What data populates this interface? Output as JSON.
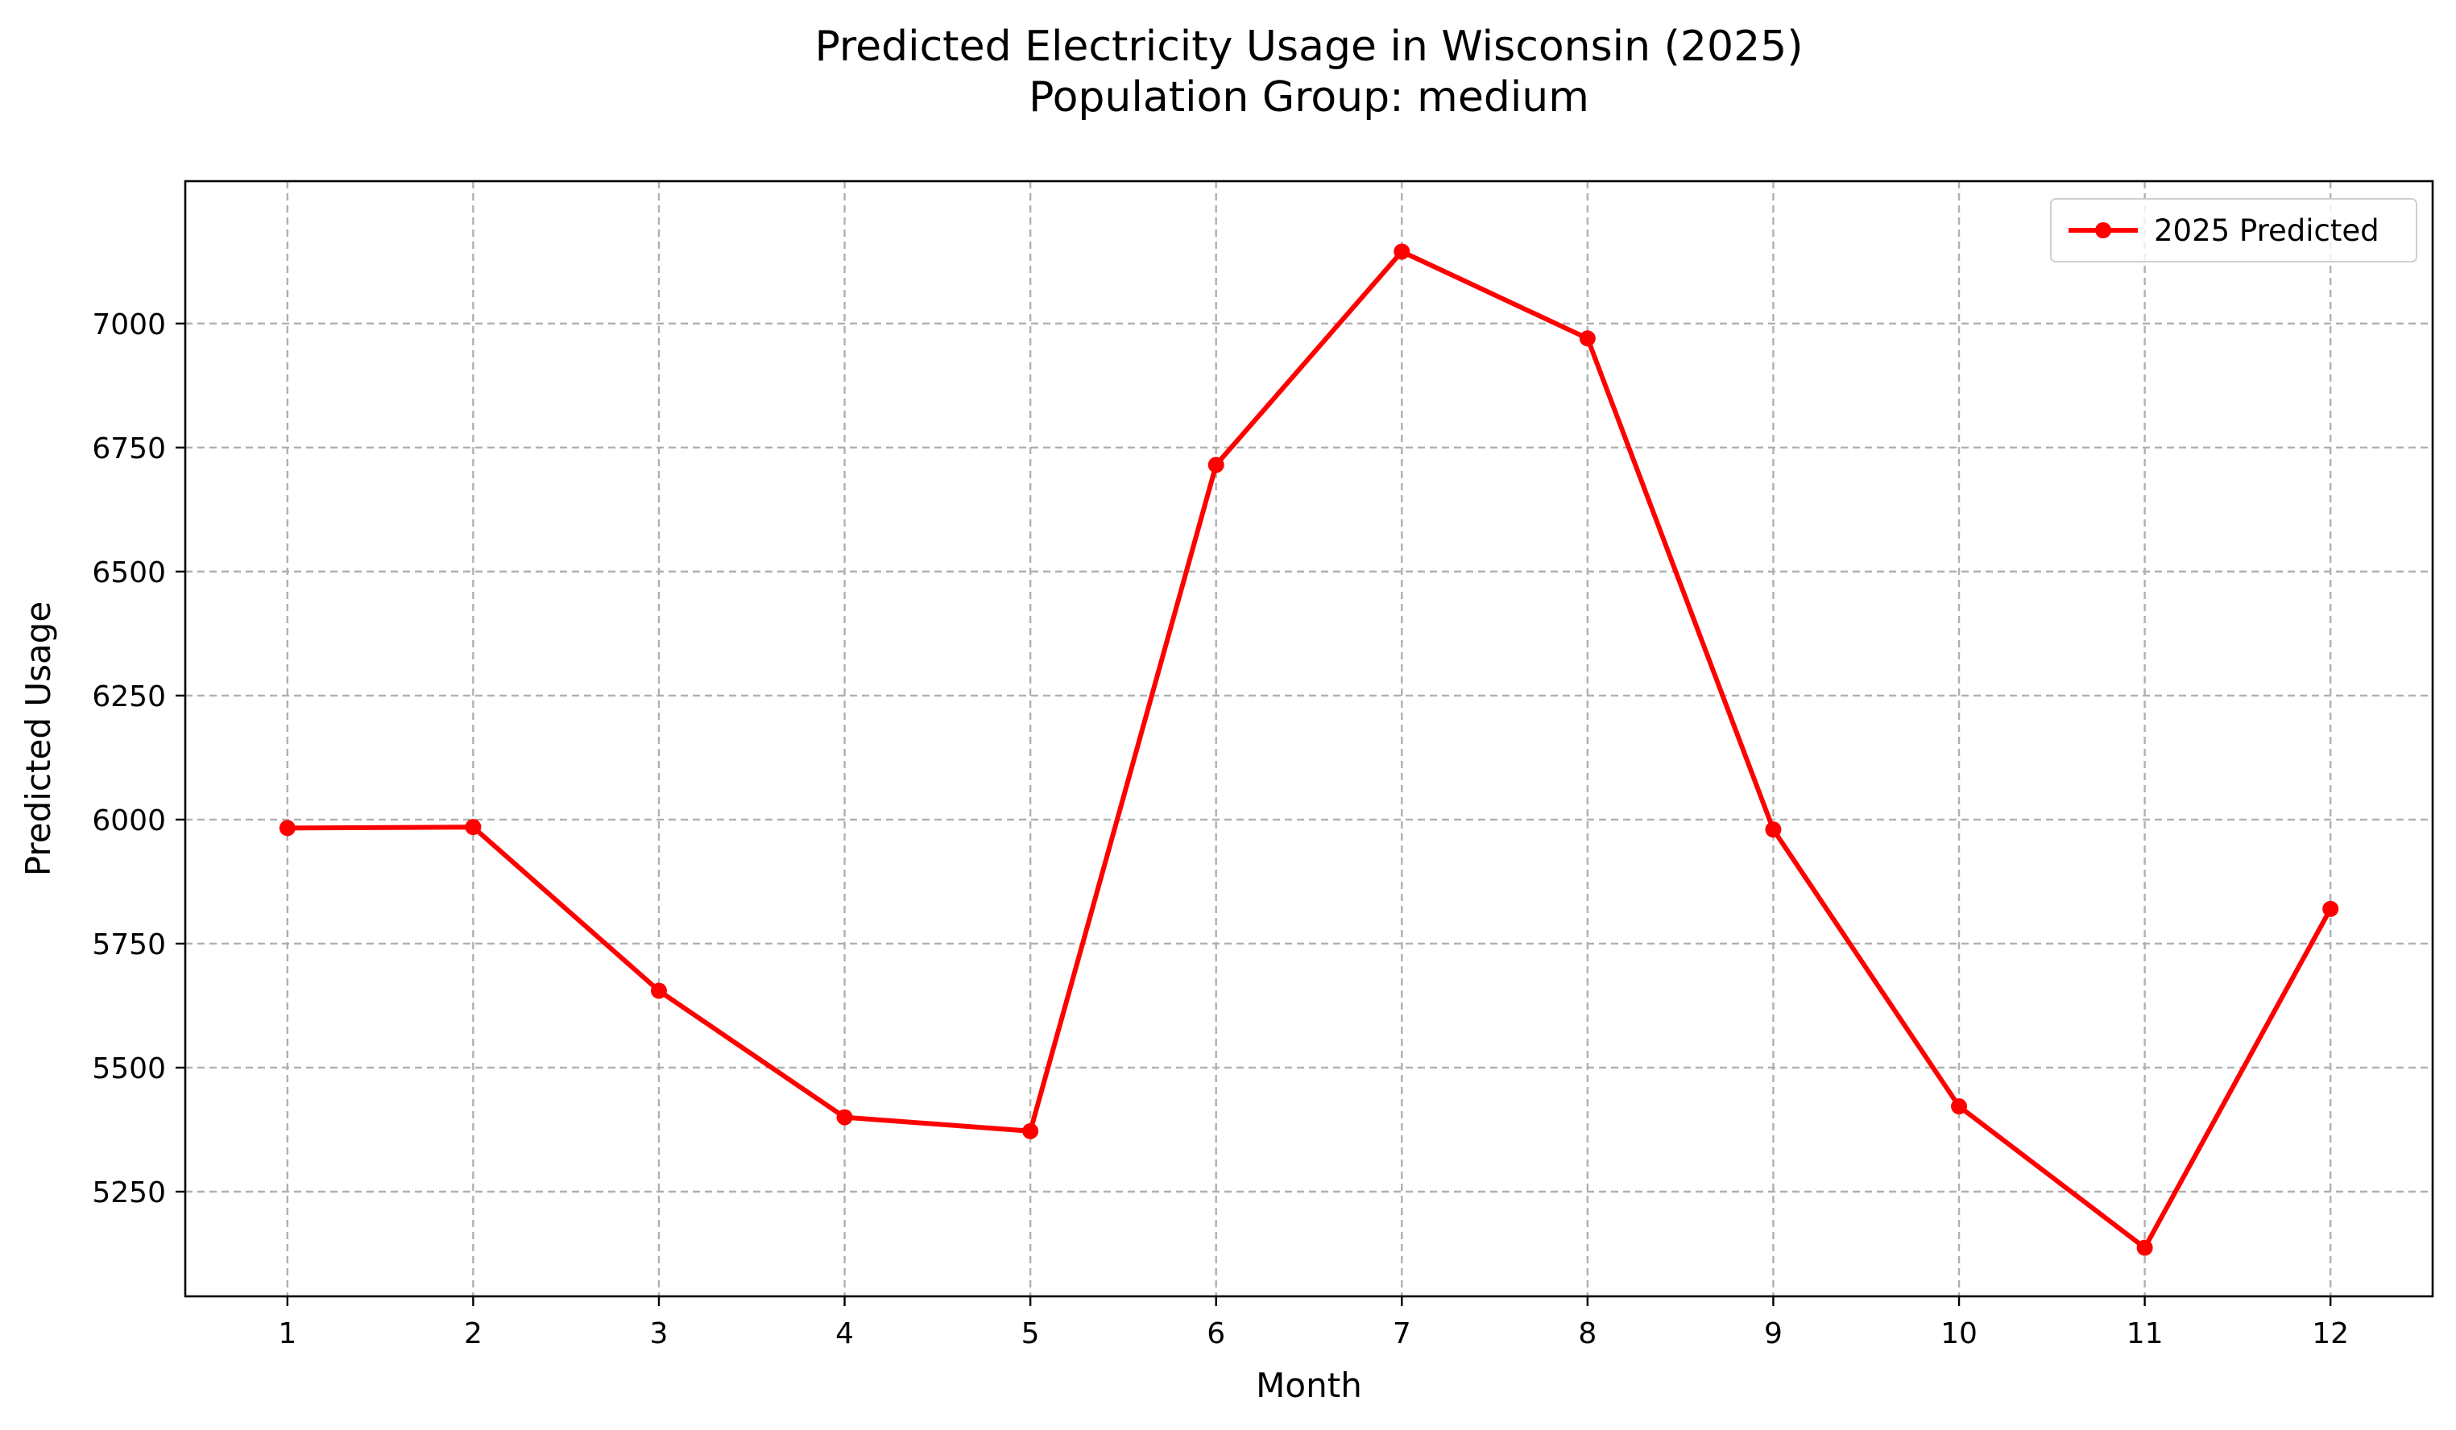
{
  "chart_data": {
    "type": "line",
    "title": "Predicted Electricity Usage in Wisconsin (2025)",
    "subtitle": "Population Group: medium",
    "xlabel": "Month",
    "ylabel": "Predicted Usage",
    "x": [
      1,
      2,
      3,
      4,
      5,
      6,
      7,
      8,
      9,
      10,
      11,
      12
    ],
    "x_tick_labels": [
      "1",
      "2",
      "3",
      "4",
      "5",
      "6",
      "7",
      "8",
      "9",
      "10",
      "11",
      "12"
    ],
    "xlim": [
      0.45,
      12.55
    ],
    "y_ticks": [
      5250,
      5500,
      5750,
      6000,
      6250,
      6500,
      6750,
      7000
    ],
    "y_tick_labels": [
      "5250",
      "5500",
      "5750",
      "6000",
      "6250",
      "6500",
      "6750",
      "7000"
    ],
    "ylim": [
      5039,
      7287
    ],
    "grid": true,
    "legend_position": "top-right",
    "series": [
      {
        "name": "2025 Predicted",
        "color": "#ff0000",
        "marker": "circle",
        "values": [
          5983,
          5985,
          5655,
          5400,
          5372,
          6715,
          7145,
          6970,
          5980,
          5422,
          5137,
          5820
        ]
      }
    ]
  }
}
